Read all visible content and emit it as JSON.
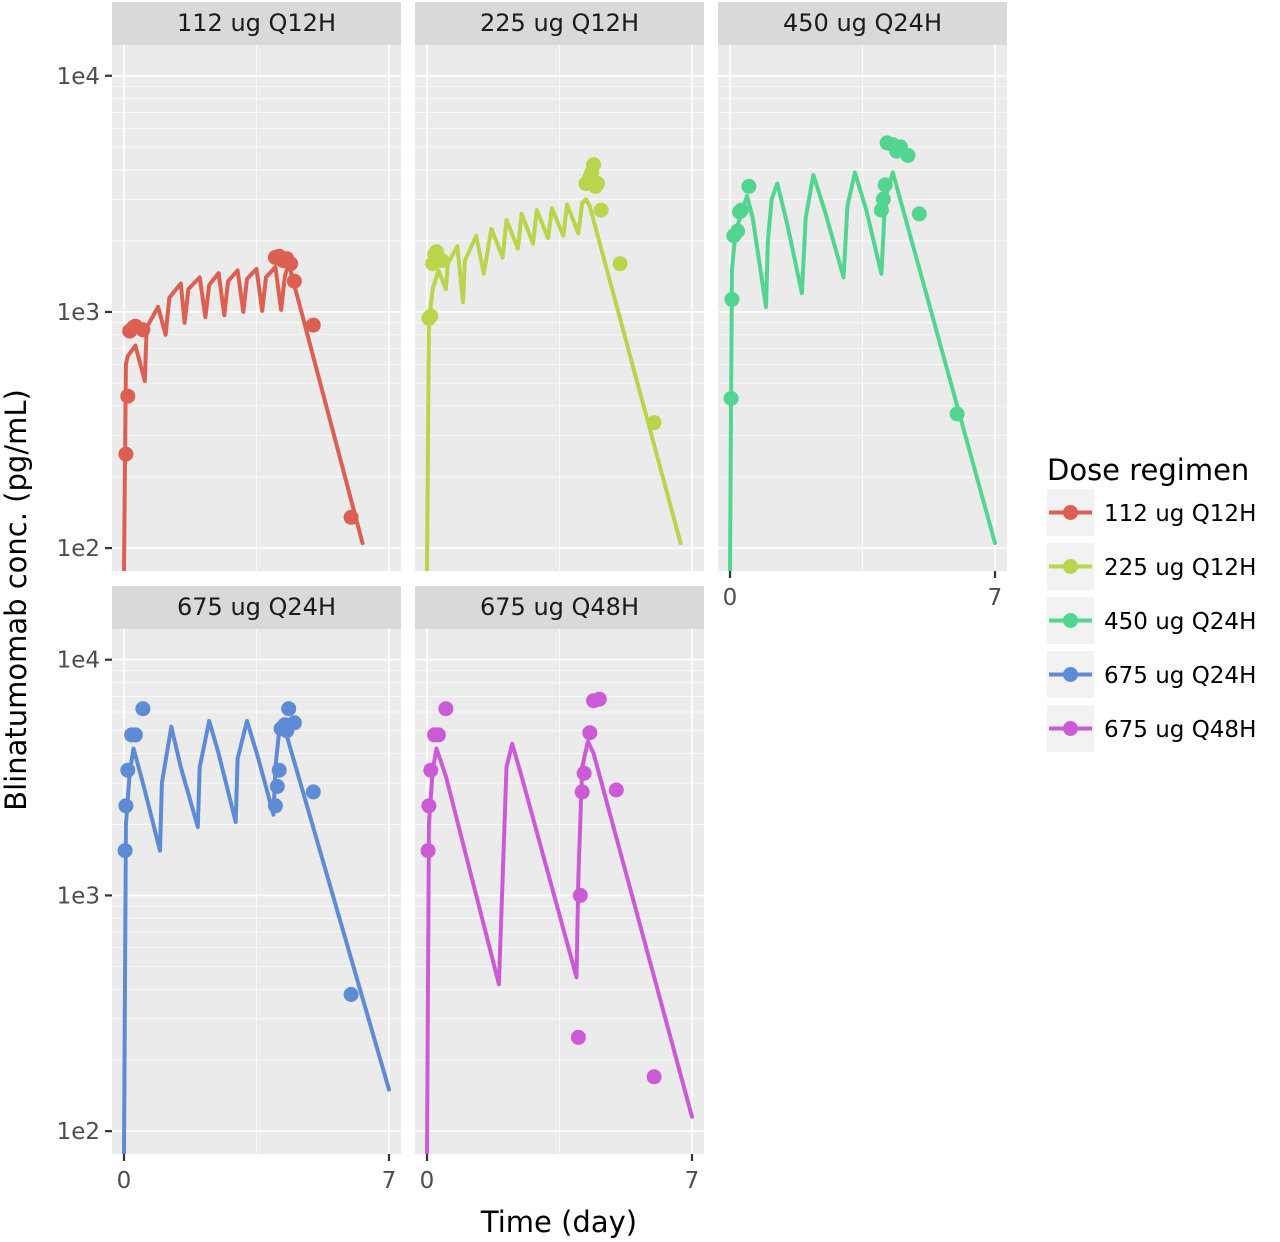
{
  "chart_data": {
    "type": "line",
    "facet": true,
    "xlabel": "Time (day)",
    "ylabel": "Blinatumomab conc. (pg/mL)",
    "x_scale": "linear",
    "y_scale": "log10",
    "xlim": [
      0,
      7
    ],
    "ylim": [
      80,
      13500
    ],
    "x_ticks": [
      0,
      7
    ],
    "x_tick_labels": [
      "0",
      "7"
    ],
    "y_ticks": [
      100,
      1000,
      10000
    ],
    "y_tick_labels": [
      "1e2",
      "1e3",
      "1e4"
    ],
    "grid": true,
    "legend": {
      "title": "Dose regimen",
      "position": "right",
      "entries": [
        "112 ug Q12H",
        "225 ug Q12H",
        "450 ug Q24H",
        "675 ug Q24H",
        "675 ug Q48H"
      ]
    },
    "series": [
      {
        "name": "112 ug Q12H",
        "color": "#dc5f52",
        "line": [
          [
            0,
            80
          ],
          [
            0.05,
            600
          ],
          [
            0.1,
            650
          ],
          [
            0.3,
            720
          ],
          [
            0.55,
            510
          ],
          [
            0.6,
            860
          ],
          [
            0.9,
            1050
          ],
          [
            1.1,
            800
          ],
          [
            1.2,
            1150
          ],
          [
            1.5,
            1320
          ],
          [
            1.6,
            900
          ],
          [
            1.7,
            1250
          ],
          [
            2.0,
            1400
          ],
          [
            2.15,
            950
          ],
          [
            2.25,
            1300
          ],
          [
            2.5,
            1460
          ],
          [
            2.65,
            970
          ],
          [
            2.75,
            1350
          ],
          [
            3.0,
            1500
          ],
          [
            3.15,
            1000
          ],
          [
            3.25,
            1380
          ],
          [
            3.5,
            1520
          ],
          [
            3.65,
            1010
          ],
          [
            3.75,
            1400
          ],
          [
            4.0,
            1550
          ],
          [
            4.15,
            1020
          ],
          [
            4.25,
            1420
          ],
          [
            4.35,
            1600
          ],
          [
            6.3,
            105
          ]
        ],
        "points": [
          [
            0.05,
            250
          ],
          [
            0.1,
            440
          ],
          [
            0.15,
            830
          ],
          [
            0.25,
            860
          ],
          [
            0.3,
            870
          ],
          [
            0.5,
            840
          ],
          [
            4.0,
            1700
          ],
          [
            4.1,
            1720
          ],
          [
            4.2,
            1650
          ],
          [
            4.3,
            1680
          ],
          [
            4.4,
            1600
          ],
          [
            4.5,
            1350
          ],
          [
            5.0,
            880
          ],
          [
            6.0,
            135
          ]
        ]
      },
      {
        "name": "225 ug Q12H",
        "color": "#b8d54b",
        "line": [
          [
            0,
            80
          ],
          [
            0.05,
            900
          ],
          [
            0.15,
            1250
          ],
          [
            0.3,
            1500
          ],
          [
            0.5,
            1250
          ],
          [
            0.55,
            1600
          ],
          [
            0.8,
            1900
          ],
          [
            0.95,
            1100
          ],
          [
            1.0,
            1650
          ],
          [
            1.3,
            2100
          ],
          [
            1.5,
            1450
          ],
          [
            1.7,
            2250
          ],
          [
            2.0,
            1700
          ],
          [
            2.1,
            2450
          ],
          [
            2.4,
            1850
          ],
          [
            2.5,
            2600
          ],
          [
            2.8,
            1950
          ],
          [
            2.9,
            2700
          ],
          [
            3.2,
            2050
          ],
          [
            3.3,
            2750
          ],
          [
            3.6,
            2100
          ],
          [
            3.7,
            2850
          ],
          [
            4.0,
            2150
          ],
          [
            4.1,
            2900
          ],
          [
            4.2,
            3000
          ],
          [
            4.3,
            2800
          ],
          [
            6.7,
            105
          ]
        ],
        "points": [
          [
            0.05,
            940
          ],
          [
            0.1,
            960
          ],
          [
            0.15,
            1600
          ],
          [
            0.2,
            1750
          ],
          [
            0.25,
            1800
          ],
          [
            0.3,
            1700
          ],
          [
            0.4,
            1650
          ],
          [
            4.2,
            3500
          ],
          [
            4.3,
            3700
          ],
          [
            4.35,
            3900
          ],
          [
            4.4,
            4200
          ],
          [
            4.45,
            3400
          ],
          [
            4.5,
            3500
          ],
          [
            4.6,
            2700
          ],
          [
            5.1,
            1600
          ],
          [
            6.0,
            340
          ]
        ]
      },
      {
        "name": "450 ug Q24H",
        "color": "#52d68f",
        "line": [
          [
            0,
            80
          ],
          [
            0.05,
            1500
          ],
          [
            0.15,
            2200
          ],
          [
            0.3,
            2600
          ],
          [
            0.45,
            3100
          ],
          [
            0.6,
            2500
          ],
          [
            0.95,
            1050
          ],
          [
            1.0,
            2000
          ],
          [
            1.1,
            3000
          ],
          [
            1.25,
            3500
          ],
          [
            1.5,
            2400
          ],
          [
            1.9,
            1200
          ],
          [
            2.0,
            2500
          ],
          [
            2.2,
            3800
          ],
          [
            2.5,
            2700
          ],
          [
            3.0,
            1400
          ],
          [
            3.1,
            2800
          ],
          [
            3.3,
            3900
          ],
          [
            3.6,
            2700
          ],
          [
            4.0,
            1450
          ],
          [
            4.1,
            3000
          ],
          [
            4.3,
            3900
          ],
          [
            7.0,
            105
          ]
        ],
        "points": [
          [
            0.03,
            430
          ],
          [
            0.05,
            1130
          ],
          [
            0.1,
            2100
          ],
          [
            0.2,
            2200
          ],
          [
            0.25,
            2650
          ],
          [
            0.3,
            2700
          ],
          [
            0.5,
            3400
          ],
          [
            4.0,
            2700
          ],
          [
            4.05,
            3000
          ],
          [
            4.1,
            3450
          ],
          [
            4.15,
            5200
          ],
          [
            4.3,
            5100
          ],
          [
            4.4,
            4800
          ],
          [
            4.5,
            5000
          ],
          [
            4.7,
            4600
          ],
          [
            5.0,
            2600
          ],
          [
            6.0,
            370
          ]
        ]
      },
      {
        "name": "675 ug Q24H",
        "color": "#5d8bd6",
        "line": [
          [
            0,
            80
          ],
          [
            0.05,
            2000
          ],
          [
            0.15,
            3300
          ],
          [
            0.25,
            4200
          ],
          [
            0.5,
            3000
          ],
          [
            0.95,
            1550
          ],
          [
            1.0,
            3000
          ],
          [
            1.25,
            5200
          ],
          [
            1.5,
            3500
          ],
          [
            1.95,
            1950
          ],
          [
            2.0,
            3500
          ],
          [
            2.25,
            5500
          ],
          [
            2.5,
            4000
          ],
          [
            2.95,
            2050
          ],
          [
            3.0,
            3800
          ],
          [
            3.25,
            5500
          ],
          [
            3.55,
            3800
          ],
          [
            3.95,
            2200
          ],
          [
            4.0,
            3500
          ],
          [
            4.1,
            5000
          ],
          [
            4.2,
            5400
          ],
          [
            7.0,
            150
          ]
        ],
        "points": [
          [
            0.03,
            1550
          ],
          [
            0.05,
            2400
          ],
          [
            0.1,
            3400
          ],
          [
            0.2,
            4800
          ],
          [
            0.3,
            4800
          ],
          [
            0.5,
            6200
          ],
          [
            4.0,
            2400
          ],
          [
            4.05,
            2900
          ],
          [
            4.1,
            3400
          ],
          [
            4.15,
            5100
          ],
          [
            4.25,
            5300
          ],
          [
            4.3,
            5000
          ],
          [
            4.35,
            6200
          ],
          [
            4.5,
            5400
          ],
          [
            5.0,
            2750
          ],
          [
            6.0,
            380
          ]
        ]
      },
      {
        "name": "675 ug Q48H",
        "color": "#cc5ad7",
        "line": [
          [
            0,
            80
          ],
          [
            0.05,
            2000
          ],
          [
            0.15,
            3400
          ],
          [
            0.25,
            4200
          ],
          [
            0.5,
            3200
          ],
          [
            1.9,
            420
          ],
          [
            2.0,
            1200
          ],
          [
            2.1,
            3500
          ],
          [
            2.25,
            4400
          ],
          [
            2.5,
            3200
          ],
          [
            3.95,
            450
          ],
          [
            4.0,
            1200
          ],
          [
            4.1,
            3500
          ],
          [
            4.25,
            4500
          ],
          [
            4.4,
            4000
          ],
          [
            7.0,
            115
          ]
        ],
        "points": [
          [
            0.03,
            1550
          ],
          [
            0.05,
            2400
          ],
          [
            0.1,
            3400
          ],
          [
            0.2,
            4800
          ],
          [
            0.3,
            4800
          ],
          [
            0.5,
            6200
          ],
          [
            4.0,
            250
          ],
          [
            4.05,
            1000
          ],
          [
            4.1,
            2750
          ],
          [
            4.15,
            3300
          ],
          [
            4.3,
            4900
          ],
          [
            4.4,
            6700
          ],
          [
            4.55,
            6800
          ],
          [
            5.0,
            2800
          ],
          [
            6.0,
            170
          ]
        ]
      }
    ]
  }
}
